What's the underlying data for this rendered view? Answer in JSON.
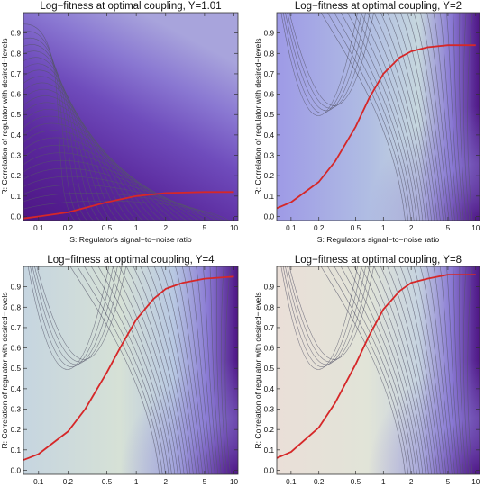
{
  "chart_data": [
    {
      "type": "contour",
      "title": "Log−fitness at optimal coupling, Y=1.01",
      "xlabel": "S: Regulator's signal−to−noise ratio",
      "ylabel": "R: Correlation of regulator with desired−levels",
      "x_scale": "log",
      "xlim": [
        0.07,
        11
      ],
      "ylim": [
        -0.02,
        1.0
      ],
      "x_ticks": [
        "0.1",
        "0.2",
        "0.5",
        "1",
        "2",
        "5",
        "10"
      ],
      "y_ticks": [
        "0.0",
        "0.1",
        "0.2",
        "0.3",
        "0.4",
        "0.5",
        "0.6",
        "0.7",
        "0.8",
        "0.9"
      ],
      "fill_colors": [
        "#4e1585",
        "#5b2a9e",
        "#6f4cbc",
        "#8a78d2",
        "#a8a4dc"
      ],
      "contour_color": "#55556a",
      "optimal_curve": {
        "color": "#d62728",
        "x": [
          0.07,
          0.1,
          0.2,
          0.5,
          1,
          2,
          5,
          10
        ],
        "y": [
          -0.01,
          0.0,
          0.02,
          0.07,
          0.1,
          0.115,
          0.12,
          0.12
        ]
      }
    },
    {
      "type": "contour",
      "title": "Log−fitness at optimal coupling, Y=2",
      "xlabel": "S: Regulator's signal−to−noise ratio",
      "ylabel": "R: Correlation of regulator with desired−levels",
      "x_scale": "log",
      "xlim": [
        0.07,
        11
      ],
      "ylim": [
        -0.02,
        1.0
      ],
      "x_ticks": [
        "0.1",
        "0.2",
        "0.5",
        "1",
        "2",
        "5",
        "10"
      ],
      "y_ticks": [
        "0.0",
        "0.1",
        "0.2",
        "0.3",
        "0.4",
        "0.5",
        "0.6",
        "0.7",
        "0.8",
        "0.9"
      ],
      "fill_colors": [
        "#9e9ae6",
        "#b0bde3",
        "#c6d7de",
        "#8a7ad4",
        "#4e1585"
      ],
      "contour_color": "#55556a",
      "optimal_curve": {
        "color": "#d62728",
        "x": [
          0.07,
          0.1,
          0.2,
          0.3,
          0.5,
          0.7,
          1,
          1.5,
          2,
          3,
          5,
          10
        ],
        "y": [
          0.04,
          0.07,
          0.17,
          0.27,
          0.44,
          0.58,
          0.7,
          0.78,
          0.81,
          0.83,
          0.84,
          0.84
        ]
      }
    },
    {
      "type": "contour",
      "title": "Log−fitness at optimal coupling, Y=4",
      "xlabel": "S: Regulator's signal−to−noise ratio",
      "ylabel": "R: Correlation of regulator with desired−levels",
      "x_scale": "log",
      "xlim": [
        0.07,
        11
      ],
      "ylim": [
        -0.02,
        1.0
      ],
      "x_ticks": [
        "0.1",
        "0.2",
        "0.5",
        "1",
        "2",
        "5",
        "10"
      ],
      "y_ticks": [
        "0.0",
        "0.1",
        "0.2",
        "0.3",
        "0.4",
        "0.5",
        "0.6",
        "0.7",
        "0.8",
        "0.9"
      ],
      "fill_colors": [
        "#c6d5e0",
        "#d6e1d6",
        "#b8c8e2",
        "#8a7ad4",
        "#4e1585"
      ],
      "contour_color": "#55556a",
      "optimal_curve": {
        "color": "#d62728",
        "x": [
          0.07,
          0.1,
          0.2,
          0.3,
          0.5,
          0.7,
          1,
          1.5,
          2,
          3,
          5,
          10
        ],
        "y": [
          0.05,
          0.08,
          0.19,
          0.3,
          0.48,
          0.61,
          0.74,
          0.84,
          0.89,
          0.92,
          0.94,
          0.95
        ]
      }
    },
    {
      "type": "contour",
      "title": "Log−fitness at optimal coupling, Y=8",
      "xlabel": "S: Regulator's signal−to−noise ratio",
      "ylabel": "R: Correlation of regulator with desired−levels",
      "x_scale": "log",
      "xlim": [
        0.07,
        11
      ],
      "ylim": [
        -0.02,
        1.0
      ],
      "x_ticks": [
        "0.1",
        "0.2",
        "0.5",
        "1",
        "2",
        "5",
        "10"
      ],
      "y_ticks": [
        "0.0",
        "0.1",
        "0.2",
        "0.3",
        "0.4",
        "0.5",
        "0.6",
        "0.7",
        "0.8",
        "0.9"
      ],
      "fill_colors": [
        "#eadfd8",
        "#e1e4d8",
        "#c6d3e0",
        "#8a7ad4",
        "#4e1585"
      ],
      "contour_color": "#55556a",
      "optimal_curve": {
        "color": "#d62728",
        "x": [
          0.07,
          0.1,
          0.2,
          0.3,
          0.5,
          0.7,
          1,
          1.5,
          2,
          3,
          5,
          10
        ],
        "y": [
          0.06,
          0.09,
          0.21,
          0.33,
          0.52,
          0.66,
          0.79,
          0.88,
          0.92,
          0.94,
          0.96,
          0.96
        ]
      }
    }
  ]
}
